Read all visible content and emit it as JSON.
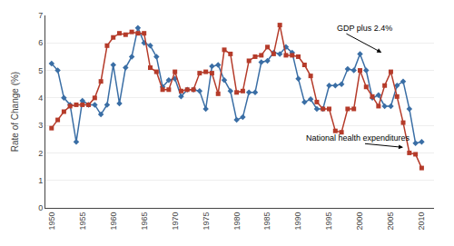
{
  "chart_data": {
    "type": "line",
    "y_label": "Rate of Change (%)",
    "x": [
      1950,
      1951,
      1952,
      1953,
      1954,
      1955,
      1956,
      1957,
      1958,
      1959,
      1960,
      1961,
      1962,
      1963,
      1964,
      1965,
      1966,
      1967,
      1968,
      1969,
      1970,
      1971,
      1972,
      1973,
      1974,
      1975,
      1976,
      1977,
      1978,
      1979,
      1980,
      1981,
      1982,
      1983,
      1984,
      1985,
      1986,
      1987,
      1988,
      1989,
      1990,
      1991,
      1992,
      1993,
      1994,
      1995,
      1996,
      1997,
      1998,
      1999,
      2000,
      2001,
      2002,
      2003,
      2004,
      2005,
      2006,
      2007,
      2008,
      2009,
      2010
    ],
    "series": [
      {
        "color": "#3a6ea5",
        "marker": "diamond",
        "line_style": "solid",
        "values": [
          5.25,
          5.0,
          4.0,
          3.75,
          2.4,
          3.9,
          3.75,
          3.75,
          3.4,
          3.75,
          5.2,
          3.8,
          5.1,
          5.5,
          6.55,
          6.0,
          5.9,
          5.5,
          4.4,
          4.65,
          4.7,
          4.05,
          4.3,
          4.3,
          4.25,
          3.6,
          5.15,
          5.2,
          4.65,
          4.25,
          3.2,
          3.3,
          4.2,
          4.2,
          5.3,
          5.35,
          5.65,
          5.6,
          5.85,
          5.65,
          4.7,
          3.85,
          3.95,
          3.6,
          3.6,
          4.45,
          4.45,
          4.5,
          5.05,
          5.0,
          5.6,
          5.0,
          4.0,
          4.1,
          3.7,
          3.7,
          4.45,
          4.6,
          3.6,
          2.35,
          2.4
        ]
      },
      {
        "color": "#b53b2a",
        "marker": "square",
        "line_style": "solid",
        "values": [
          2.9,
          3.2,
          3.5,
          3.7,
          3.75,
          3.75,
          3.75,
          4.0,
          4.6,
          5.9,
          6.2,
          6.35,
          6.3,
          6.4,
          6.35,
          6.35,
          5.1,
          4.95,
          4.3,
          4.3,
          4.95,
          4.25,
          4.3,
          4.3,
          4.9,
          4.95,
          4.9,
          4.15,
          5.75,
          5.6,
          4.2,
          4.25,
          5.35,
          5.5,
          5.55,
          5.85,
          5.6,
          6.65,
          5.55,
          5.55,
          5.5,
          5.2,
          4.8,
          3.85,
          3.6,
          3.6,
          2.8,
          2.75,
          3.6,
          3.6,
          5.0,
          4.4,
          4.05,
          3.7,
          4.45,
          4.95,
          4.05,
          3.1,
          2.0,
          1.95,
          1.45
        ]
      }
    ],
    "xlim": [
      1949,
      2012
    ],
    "xticks": [
      1950,
      1955,
      1960,
      1965,
      1970,
      1975,
      1980,
      1985,
      1990,
      1995,
      2000,
      2005,
      2010
    ],
    "ylim": [
      0,
      7
    ],
    "yticks": [
      0,
      1,
      2,
      3,
      4,
      5,
      6,
      7
    ],
    "grid": "y",
    "annotations": [
      {
        "text": "GDP plus 2.4%",
        "x": 2003.5,
        "y": 5.65,
        "text_x": 1996,
        "text_y": 6.55
      },
      {
        "text": "National health expenditures",
        "x": 2007,
        "y": 2.2,
        "text_x": 1991,
        "text_y": 2.55
      }
    ]
  }
}
